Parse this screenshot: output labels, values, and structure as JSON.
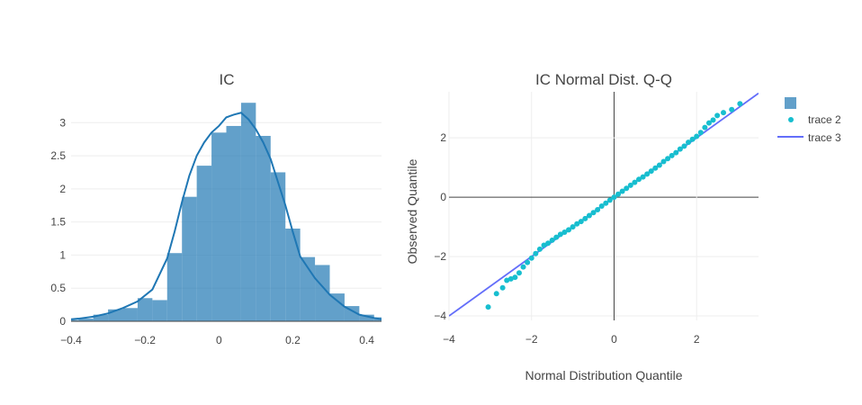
{
  "chart_data": [
    {
      "type": "bar",
      "subtype": "histogram_with_kde",
      "title": "IC",
      "xlabel": "",
      "ylabel": "",
      "xlim": [
        -0.4,
        0.44
      ],
      "ylim": [
        0,
        3.33
      ],
      "x_ticks": [
        "−0.4",
        "−0.2",
        "0",
        "0.2",
        "0.4"
      ],
      "y_ticks": [
        "0",
        "0.5",
        "1",
        "1.5",
        "2",
        "2.5",
        "3"
      ],
      "bar_color": "#1f77b4",
      "bins": [
        {
          "x0": -0.42,
          "x1": -0.38,
          "y": 0.02
        },
        {
          "x0": -0.38,
          "x1": -0.34,
          "y": 0.04
        },
        {
          "x0": -0.34,
          "x1": -0.3,
          "y": 0.1
        },
        {
          "x0": -0.3,
          "x1": -0.26,
          "y": 0.18
        },
        {
          "x0": -0.26,
          "x1": -0.22,
          "y": 0.2
        },
        {
          "x0": -0.22,
          "x1": -0.18,
          "y": 0.35
        },
        {
          "x0": -0.18,
          "x1": -0.14,
          "y": 0.32
        },
        {
          "x0": -0.14,
          "x1": -0.1,
          "y": 1.03
        },
        {
          "x0": -0.1,
          "x1": -0.06,
          "y": 1.88
        },
        {
          "x0": -0.06,
          "x1": -0.02,
          "y": 2.35
        },
        {
          "x0": -0.02,
          "x1": 0.02,
          "y": 2.85
        },
        {
          "x0": 0.02,
          "x1": 0.06,
          "y": 2.95
        },
        {
          "x0": 0.06,
          "x1": 0.1,
          "y": 3.3
        },
        {
          "x0": 0.1,
          "x1": 0.14,
          "y": 2.8
        },
        {
          "x0": 0.14,
          "x1": 0.18,
          "y": 2.25
        },
        {
          "x0": 0.18,
          "x1": 0.22,
          "y": 1.4
        },
        {
          "x0": 0.22,
          "x1": 0.26,
          "y": 0.97
        },
        {
          "x0": 0.26,
          "x1": 0.3,
          "y": 0.85
        },
        {
          "x0": 0.3,
          "x1": 0.34,
          "y": 0.42
        },
        {
          "x0": 0.34,
          "x1": 0.38,
          "y": 0.23
        },
        {
          "x0": 0.38,
          "x1": 0.42,
          "y": 0.1
        },
        {
          "x0": 0.42,
          "x1": 0.46,
          "y": 0.06
        }
      ],
      "kde": {
        "x": [
          -0.42,
          -0.38,
          -0.34,
          -0.3,
          -0.26,
          -0.22,
          -0.18,
          -0.14,
          -0.12,
          -0.1,
          -0.08,
          -0.06,
          -0.04,
          -0.02,
          0.0,
          0.02,
          0.04,
          0.06,
          0.08,
          0.1,
          0.12,
          0.14,
          0.16,
          0.18,
          0.2,
          0.22,
          0.26,
          0.3,
          0.34,
          0.38,
          0.42,
          0.44
        ],
        "y": [
          0.02,
          0.04,
          0.07,
          0.12,
          0.2,
          0.3,
          0.48,
          0.95,
          1.35,
          1.8,
          2.2,
          2.5,
          2.7,
          2.85,
          2.95,
          3.08,
          3.12,
          3.15,
          3.05,
          2.9,
          2.7,
          2.45,
          2.1,
          1.75,
          1.35,
          0.98,
          0.65,
          0.4,
          0.22,
          0.1,
          0.05,
          0.03
        ]
      }
    },
    {
      "type": "scatter",
      "subtype": "qq_plot",
      "title": "IC Normal Dist. Q-Q",
      "xlabel": "Normal Distribution Quantile",
      "ylabel": "Observed Quantile",
      "xlim": [
        -4,
        3.5
      ],
      "ylim": [
        -4.15,
        3.55
      ],
      "x_ticks": [
        "−4",
        "−2",
        "0",
        "2"
      ],
      "y_ticks": [
        "−4",
        "−2",
        "0",
        "2"
      ],
      "series": [
        {
          "name": "trace 2",
          "color": "#17becf",
          "points": [
            [
              -3.05,
              -3.7
            ],
            [
              -2.85,
              -3.25
            ],
            [
              -2.7,
              -3.05
            ],
            [
              -2.6,
              -2.8
            ],
            [
              -2.5,
              -2.75
            ],
            [
              -2.4,
              -2.7
            ],
            [
              -2.3,
              -2.55
            ],
            [
              -2.2,
              -2.35
            ],
            [
              -2.1,
              -2.2
            ],
            [
              -2.0,
              -2.05
            ],
            [
              -1.9,
              -1.9
            ],
            [
              -1.8,
              -1.75
            ],
            [
              -1.7,
              -1.62
            ],
            [
              -1.6,
              -1.55
            ],
            [
              -1.5,
              -1.45
            ],
            [
              -1.4,
              -1.35
            ],
            [
              -1.3,
              -1.25
            ],
            [
              -1.2,
              -1.18
            ],
            [
              -1.1,
              -1.1
            ],
            [
              -1.0,
              -1.0
            ],
            [
              -0.9,
              -0.9
            ],
            [
              -0.8,
              -0.82
            ],
            [
              -0.7,
              -0.72
            ],
            [
              -0.6,
              -0.62
            ],
            [
              -0.5,
              -0.52
            ],
            [
              -0.4,
              -0.42
            ],
            [
              -0.3,
              -0.3
            ],
            [
              -0.2,
              -0.2
            ],
            [
              -0.1,
              -0.1
            ],
            [
              0.0,
              0.0
            ],
            [
              0.1,
              0.1
            ],
            [
              0.2,
              0.2
            ],
            [
              0.3,
              0.3
            ],
            [
              0.4,
              0.4
            ],
            [
              0.5,
              0.5
            ],
            [
              0.6,
              0.6
            ],
            [
              0.7,
              0.68
            ],
            [
              0.8,
              0.78
            ],
            [
              0.9,
              0.88
            ],
            [
              1.0,
              0.98
            ],
            [
              1.1,
              1.08
            ],
            [
              1.2,
              1.2
            ],
            [
              1.3,
              1.3
            ],
            [
              1.4,
              1.4
            ],
            [
              1.5,
              1.5
            ],
            [
              1.6,
              1.62
            ],
            [
              1.7,
              1.72
            ],
            [
              1.8,
              1.85
            ],
            [
              1.9,
              1.95
            ],
            [
              2.0,
              2.05
            ],
            [
              2.1,
              2.18
            ],
            [
              2.2,
              2.35
            ],
            [
              2.3,
              2.5
            ],
            [
              2.4,
              2.6
            ],
            [
              2.5,
              2.75
            ],
            [
              2.65,
              2.85
            ],
            [
              2.85,
              2.95
            ],
            [
              3.05,
              3.15
            ]
          ]
        },
        {
          "name": "trace 3",
          "color": "#636efa",
          "line": {
            "x": [
              -4.0,
              3.5
            ],
            "y": [
              -4.0,
              3.5
            ]
          }
        }
      ]
    }
  ],
  "legend": {
    "items": [
      {
        "label": "",
        "kind": "square",
        "color": "#1f77b4"
      },
      {
        "label": "trace 2",
        "kind": "dot",
        "color": "#17becf"
      },
      {
        "label": "trace 3",
        "kind": "line",
        "color": "#636efa"
      }
    ]
  }
}
